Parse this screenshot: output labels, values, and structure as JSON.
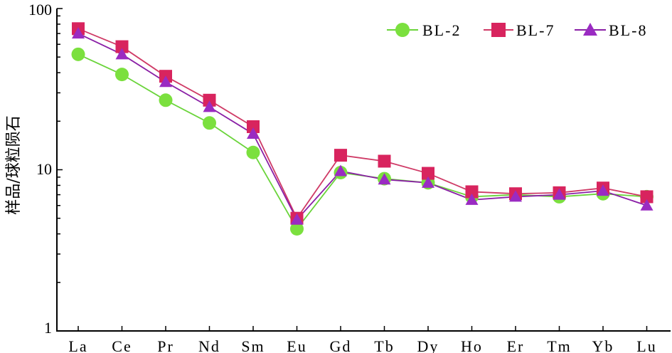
{
  "chart_data": {
    "type": "line",
    "yscale": "log",
    "ylim": [
      1,
      100
    ],
    "yticks": [
      {
        "value": 1,
        "label": "1"
      },
      {
        "value": 10,
        "label": "10"
      },
      {
        "value": 100,
        "label": "100"
      }
    ],
    "ylabel": "样品/球粒陨石",
    "xlabel": "",
    "title": "",
    "categories": [
      "La",
      "Ce",
      "Pr",
      "Nd",
      "Sm",
      "Eu",
      "Gd",
      "Tb",
      "Dy",
      "Ho",
      "Er",
      "Tm",
      "Yb",
      "Lu"
    ],
    "legend_position": "top-right",
    "grid": false,
    "series": [
      {
        "name": "BL-2",
        "marker": "circle",
        "color": "#6ad43a",
        "marker_color": "#7be03e",
        "values": [
          52,
          39,
          27,
          19.5,
          12.8,
          4.3,
          9.6,
          8.8,
          8.3,
          6.8,
          7.0,
          6.8,
          7.1,
          6.8
        ]
      },
      {
        "name": "BL-7",
        "marker": "square",
        "color": "#cf3a66",
        "marker_color": "#d8245e",
        "values": [
          75,
          58,
          38,
          27,
          18.5,
          5.0,
          12.3,
          11.3,
          9.5,
          7.3,
          7.1,
          7.2,
          7.7,
          6.8
        ]
      },
      {
        "name": "BL-8",
        "marker": "triangle",
        "color": "#8a1fa6",
        "marker_color": "#9a2bc2",
        "values": [
          70,
          52,
          35,
          24.5,
          16.7,
          4.9,
          9.8,
          8.7,
          8.3,
          6.5,
          6.8,
          7.0,
          7.4,
          6.0
        ]
      }
    ]
  }
}
